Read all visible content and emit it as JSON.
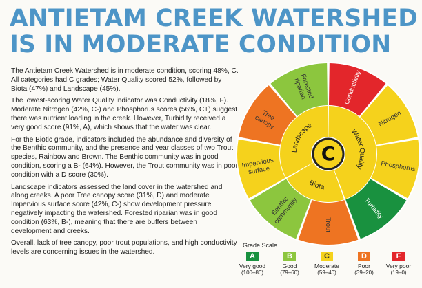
{
  "title": {
    "line1": "ANTIETAM CREEK WATERSHED",
    "line2": "IS IN MODERATE CONDITION"
  },
  "paragraphs": [
    "The Antietam Creek Watershed is in moderate condition, scoring 48%, C. All categories had C grades; Water Quality scored 52%, followed by Biota (47%) and Landscape (45%).",
    "The lowest-scoring Water Quality indicator was Conductivity (18%, F). Moderate Nitrogen (42%, C-) and Phosphorus scores (56%, C+) suggest there was nutrient loading in the creek. However, Turbidity received a very good score (91%, A), which shows that the water was clear.",
    "For the Biotic grade, indicators included the abundance and diversity of the Benthic community, and the presence and year classes of two Trout species, Rainbow and Brown. The Benthic community was in good condition, scoring a B- (64%). However, the Trout community was in poor condition with a D score (30%).",
    "Landscape indicators assessed the land cover in the watershed and along creeks. A poor Tree canopy score (31%, D) and moderate Impervious surface score (42%, C-) show development pressure negatively impacting the watershed. Forested riparian was in good condition (63%, B-), meaning that there are buffers between development and creeks.",
    "Overall, lack of tree canopy, poor trout populations, and high conductivity levels are concerning issues in the watershed."
  ],
  "wheel": {
    "overall_grade": "C",
    "categories": [
      {
        "label": "Water Quality",
        "color": "#f5d21c"
      },
      {
        "label": "Biota",
        "color": "#f5d21c"
      },
      {
        "label": "Landscape",
        "color": "#f5d21c"
      }
    ],
    "indicators": [
      {
        "label": "Conductivity",
        "color": "#e3262b"
      },
      {
        "label": "Nitrogen",
        "color": "#f5d21c"
      },
      {
        "label": "Phosphorus",
        "color": "#f5d21c"
      },
      {
        "label": "Turbidity",
        "color": "#19913f"
      },
      {
        "label": "Trout",
        "color": "#ee7422"
      },
      {
        "label": "Benthic community",
        "color": "#8cc63e"
      },
      {
        "label": "Impervious surface",
        "color": "#f5d21c"
      },
      {
        "label": "Tree canopy",
        "color": "#ee7422"
      },
      {
        "label": "Forested riparian",
        "color": "#8cc63e"
      }
    ]
  },
  "grade_scale": {
    "title": "Grade Scale",
    "grades": [
      {
        "letter": "A",
        "label": "Very good",
        "range": "(100–80)",
        "color": "#19913f"
      },
      {
        "letter": "B",
        "label": "Good",
        "range": "(79–60)",
        "color": "#8cc63e"
      },
      {
        "letter": "C",
        "label": "Moderate",
        "range": "(59–40)",
        "color": "#f5d21c"
      },
      {
        "letter": "D",
        "label": "Poor",
        "range": "(39–20)",
        "color": "#ee7422"
      },
      {
        "letter": "F",
        "label": "Very poor",
        "range": "(19–0)",
        "color": "#e3262b"
      }
    ]
  }
}
